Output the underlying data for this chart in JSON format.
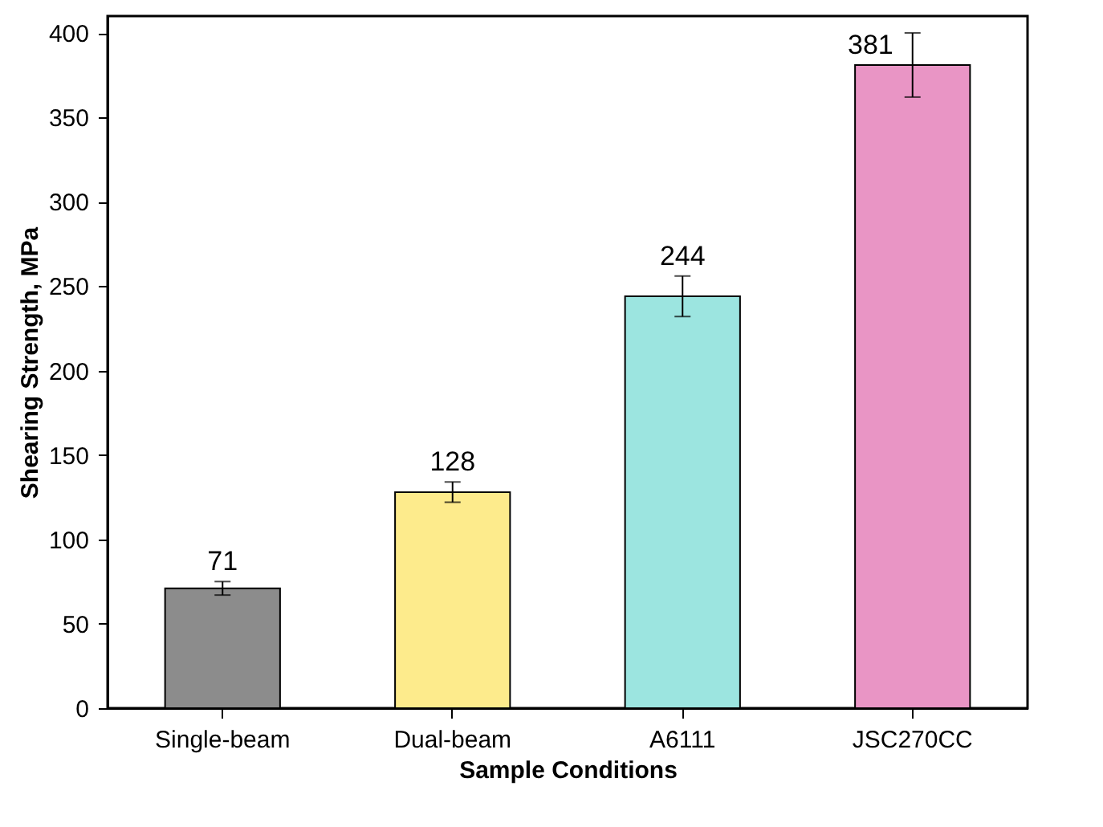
{
  "chart_data": {
    "type": "bar",
    "xlabel": "Sample Conditions",
    "ylabel": "Shearing Strength, MPa",
    "categories": [
      "Single-beam",
      "Dual-beam",
      "A6111",
      "JSC270CC"
    ],
    "values": [
      71,
      128,
      244,
      381
    ],
    "colors": [
      "#8c8c8c",
      "#fdeb8c",
      "#9ce5e0",
      "#e995c5"
    ],
    "errors": [
      4,
      6,
      12,
      19
    ],
    "data_labels": true,
    "ylim": [
      0,
      410
    ],
    "yticks": [
      0,
      50,
      100,
      150,
      200,
      250,
      300,
      350,
      400
    ],
    "grid": false
  }
}
